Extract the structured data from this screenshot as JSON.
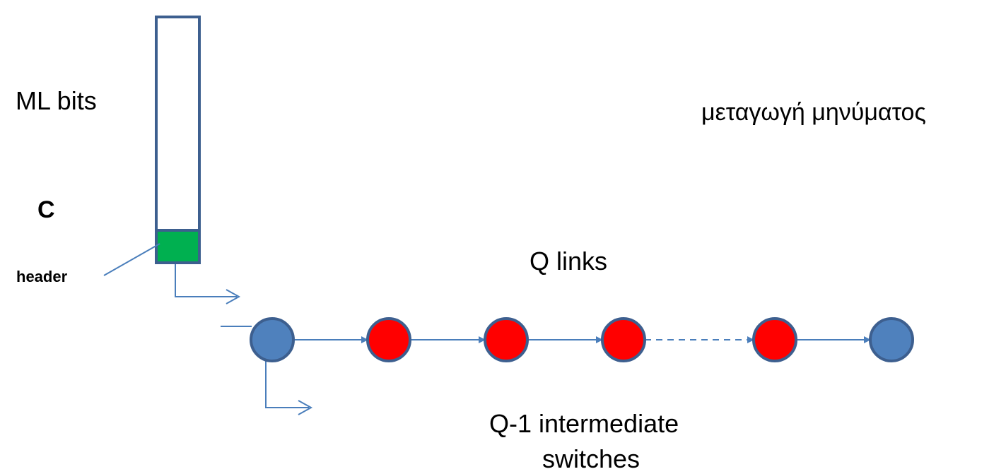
{
  "labels": {
    "message_bits": "ML bits",
    "capacity": "C",
    "header": "header",
    "title": "μεταγωγή μηνύματος",
    "links": "Q links",
    "switches_line1": "Q-1 intermediate",
    "switches_line2": "switches"
  },
  "colors": {
    "endpoint_node": "#4f81bd",
    "intermediate_node": "#ff0000",
    "header_fill": "#00b050",
    "message_outline": "#3d5f8f",
    "link": "#4a7ebb"
  },
  "nodes": [
    {
      "id": "source",
      "kind": "endpoint"
    },
    {
      "id": "switch-1",
      "kind": "intermediate"
    },
    {
      "id": "switch-2",
      "kind": "intermediate"
    },
    {
      "id": "switch-3",
      "kind": "intermediate"
    },
    {
      "id": "switch-last",
      "kind": "intermediate"
    },
    {
      "id": "destination",
      "kind": "endpoint"
    }
  ],
  "links": [
    {
      "from": "source",
      "to": "switch-1",
      "style": "solid"
    },
    {
      "from": "switch-1",
      "to": "switch-2",
      "style": "solid"
    },
    {
      "from": "switch-2",
      "to": "switch-3",
      "style": "solid"
    },
    {
      "from": "switch-3",
      "to": "switch-last",
      "style": "dashed"
    },
    {
      "from": "switch-last",
      "to": "destination",
      "style": "solid"
    }
  ]
}
